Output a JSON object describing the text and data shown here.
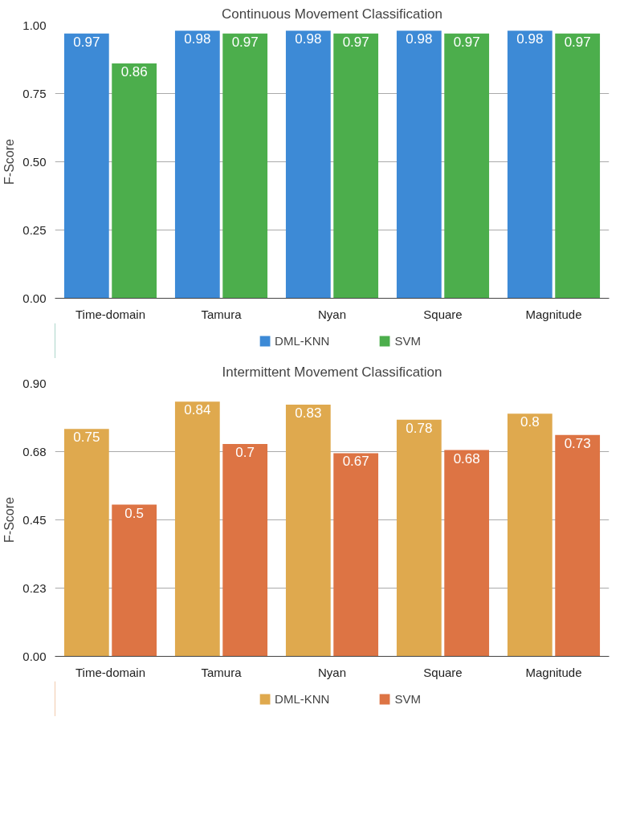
{
  "chart_data": [
    {
      "type": "bar",
      "title": "Continuous Movement Classification",
      "ylabel": "F-Score",
      "categories": [
        "Time-domain",
        "Tamura",
        "Nyan",
        "Square",
        "Magnitude"
      ],
      "series": [
        {
          "name": "DML-KNN",
          "color": "#3d8ad6",
          "values": [
            0.97,
            0.98,
            0.98,
            0.98,
            0.98
          ]
        },
        {
          "name": "SVM",
          "color": "#4cae4c",
          "values": [
            0.86,
            0.97,
            0.97,
            0.97,
            0.97
          ]
        }
      ],
      "ylim": [
        0,
        1
      ],
      "yticks": [
        {
          "value": 0,
          "label": "0.00"
        },
        {
          "value": 0.25,
          "label": "0.25"
        },
        {
          "value": 0.5,
          "label": "0.50"
        },
        {
          "value": 0.75,
          "label": "0.75"
        },
        {
          "value": 1,
          "label": "1.00"
        }
      ],
      "grid": "y",
      "legend": "bottom",
      "data_labels": true
    },
    {
      "type": "bar",
      "title": "Intermittent Movement Classification",
      "ylabel": "F-Score",
      "categories": [
        "Time-domain",
        "Tamura",
        "Nyan",
        "Square",
        "Magnitude"
      ],
      "series": [
        {
          "name": "DML-KNN",
          "color": "#dfa94e",
          "values": [
            0.75,
            0.84,
            0.83,
            0.78,
            0.8
          ]
        },
        {
          "name": "SVM",
          "color": "#dd7444",
          "values": [
            0.5,
            0.7,
            0.67,
            0.68,
            0.73
          ]
        }
      ],
      "ylim": [
        0,
        0.9
      ],
      "yticks": [
        {
          "value": 0,
          "label": "0.00"
        },
        {
          "value": 0.225,
          "label": "0.23"
        },
        {
          "value": 0.45,
          "label": "0.45"
        },
        {
          "value": 0.675,
          "label": "0.68"
        },
        {
          "value": 0.9,
          "label": "0.90"
        }
      ],
      "grid": "y",
      "legend": "bottom",
      "data_labels": true
    }
  ]
}
